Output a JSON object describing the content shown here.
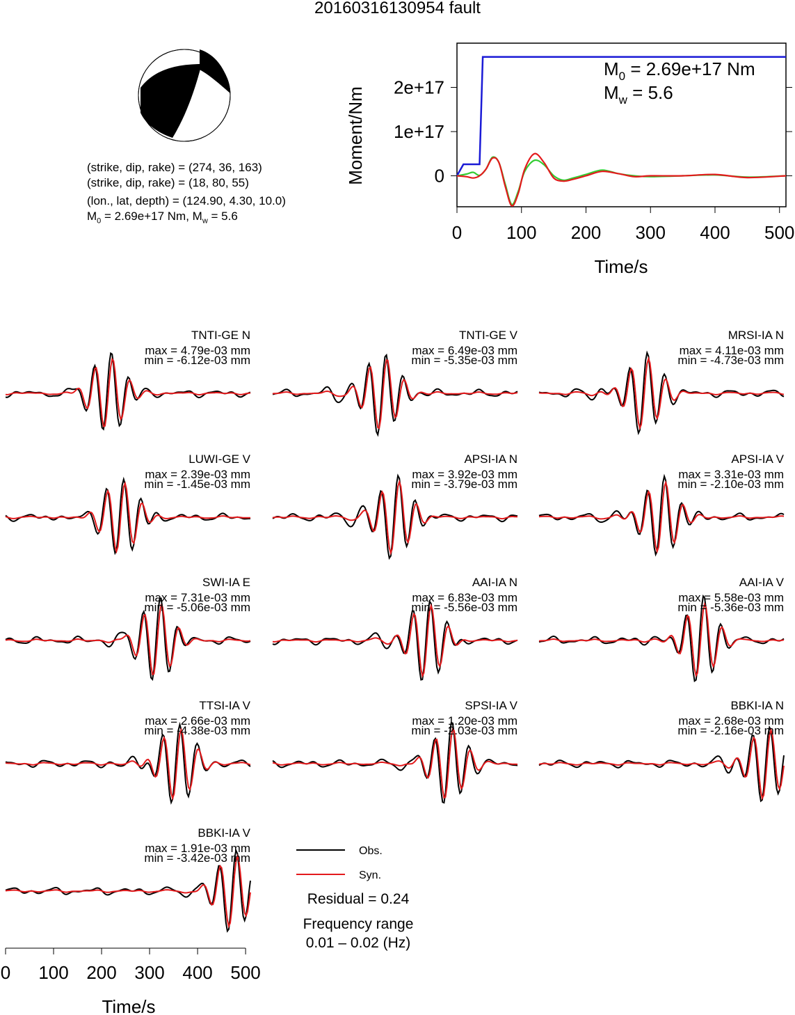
{
  "title": "20160316130954 fault",
  "mechanism": {
    "plane1": "(strike, dip, rake) = (274, 36, 163)",
    "plane2": "(strike, dip, rake) = (18, 80, 55)",
    "location": "(lon., lat, depth) = (124.90, 4.30, 10.0)",
    "moment_prefix": "M",
    "moment_sub": "0",
    "moment_rest": " = 2.69e+17 Nm, M",
    "mw_sub": "w",
    "mw_rest": " = 5.6"
  },
  "colors": {
    "obs": "#000000",
    "syn": "#e31a1c",
    "moment": "#1a1ad6",
    "rate_green": "#33cc33"
  },
  "moment_plot": {
    "ylabel": "Moment/Nm",
    "xlabel": "Time/s",
    "m0_label_prefix": "M",
    "m0_label_sub": "0",
    "m0_label_rest": " = 2.69e+17 Nm",
    "mw_label_prefix": "M",
    "mw_label_sub": "w",
    "mw_label_rest": " = 5.6"
  },
  "chart_data": [
    {
      "type": "line",
      "title": "",
      "xlabel": "Time/s",
      "ylabel": "Moment/Nm",
      "xlim": [
        0,
        510
      ],
      "ylim": [
        -7e+16,
        3e+17
      ],
      "xticks": [
        0,
        100,
        200,
        300,
        400,
        500
      ],
      "xtick_labels": [
        "0",
        "100",
        "200",
        "300",
        "400",
        "500"
      ],
      "yticks": [
        0,
        1e+17,
        2e+17
      ],
      "ytick_labels": [
        "0",
        "1e+17",
        "2e+17"
      ],
      "series": [
        {
          "name": "",
          "color": "#1a1ad6",
          "x": [
            0,
            10,
            35,
            40,
            510
          ],
          "y": [
            0,
            2.6e+16,
            2.6e+16,
            2.69e+17,
            2.69e+17
          ]
        },
        {
          "name": "",
          "color": "#33cc33",
          "x": [
            0,
            15,
            25,
            35,
            45,
            55,
            65,
            75,
            85,
            95,
            105,
            120,
            135,
            150,
            165,
            180,
            200,
            225,
            250,
            275,
            300,
            350,
            400,
            450,
            510
          ],
          "y": [
            0,
            4000000000000000.0,
            8000000000000000.0,
            1000000000000000.0,
            1.5e+16,
            4.2e+16,
            3e+16,
            -2e+16,
            -6.5e+16,
            -3.5e+16,
            1e+16,
            3.5e+16,
            2.5e+16,
            0,
            -1e+16,
            -5000000000000000.0,
            3000000000000000.0,
            1.3e+16,
            5000000000000000.0,
            0,
            -2000000000000000.0,
            0,
            2000000000000000.0,
            -3000000000000000.0,
            0
          ]
        },
        {
          "name": "",
          "color": "#e31a1c",
          "x": [
            0,
            15,
            25,
            35,
            45,
            55,
            65,
            75,
            85,
            95,
            105,
            120,
            135,
            150,
            165,
            180,
            200,
            225,
            250,
            275,
            300,
            350,
            400,
            450,
            510
          ],
          "y": [
            0,
            -2000000000000000.0,
            -5000000000000000.0,
            0,
            1.5e+16,
            4e+16,
            3e+16,
            -2.5e+16,
            -6.8e+16,
            -4e+16,
            1.5e+16,
            5e+16,
            3e+16,
            -5000000000000000.0,
            -1.2e+16,
            -8000000000000000.0,
            0,
            1e+16,
            5000000000000000.0,
            -2000000000000000.0,
            0,
            0,
            3000000000000000.0,
            -4000000000000000.0,
            0
          ]
        }
      ]
    }
  ],
  "traces": [
    {
      "label": "TNTI-GE N",
      "max": "max = 4.79e-03 mm",
      "min": "min = -6.12e-03 mm"
    },
    {
      "label": "TNTI-GE V",
      "max": "max = 6.49e-03 mm",
      "min": "min = -5.35e-03 mm"
    },
    {
      "label": "MRSI-IA N",
      "max": "max = 4.11e-03 mm",
      "min": "min = -4.73e-03 mm"
    },
    {
      "label": "LUWI-GE V",
      "max": "max = 2.39e-03 mm",
      "min": "min = -1.45e-03 mm"
    },
    {
      "label": "APSI-IA N",
      "max": "max = 3.92e-03 mm",
      "min": "min = -3.79e-03 mm"
    },
    {
      "label": "APSI-IA V",
      "max": "max = 3.31e-03 mm",
      "min": "min = -2.10e-03 mm"
    },
    {
      "label": "SWI-IA E",
      "max": "max = 7.31e-03 mm",
      "min": "min = -5.06e-03 mm"
    },
    {
      "label": "AAI-IA N",
      "max": "max = 6.83e-03 mm",
      "min": "min = -5.56e-03 mm"
    },
    {
      "label": "AAI-IA V",
      "max": "max = 5.58e-03 mm",
      "min": "min = -5.36e-03 mm"
    },
    {
      "label": "TTSI-IA V",
      "max": "max = 2.66e-03 mm",
      "min": "min = -4.38e-03 mm"
    },
    {
      "label": "SPSI-IA V",
      "max": "max = 1.20e-03 mm",
      "min": "min = -2.03e-03 mm"
    },
    {
      "label": "BBKI-IA N",
      "max": "max = 2.68e-03 mm",
      "min": "min = -2.16e-03 mm"
    },
    {
      "label": "BBKI-IA V",
      "max": "max = 1.91e-03 mm",
      "min": "min = -3.42e-03 mm"
    }
  ],
  "legend": {
    "obs": "Obs.",
    "syn": "Syn."
  },
  "residual": "Residual = 0.24",
  "freq_title": "Frequency range",
  "freq_value": "0.01 – 0.02 (Hz)",
  "bottom_axis": {
    "xlabel": "Time/s",
    "xticks": [
      0,
      100,
      200,
      300,
      400,
      500
    ],
    "xtick_labels": [
      "0",
      "100",
      "200",
      "300",
      "400",
      "500"
    ]
  }
}
